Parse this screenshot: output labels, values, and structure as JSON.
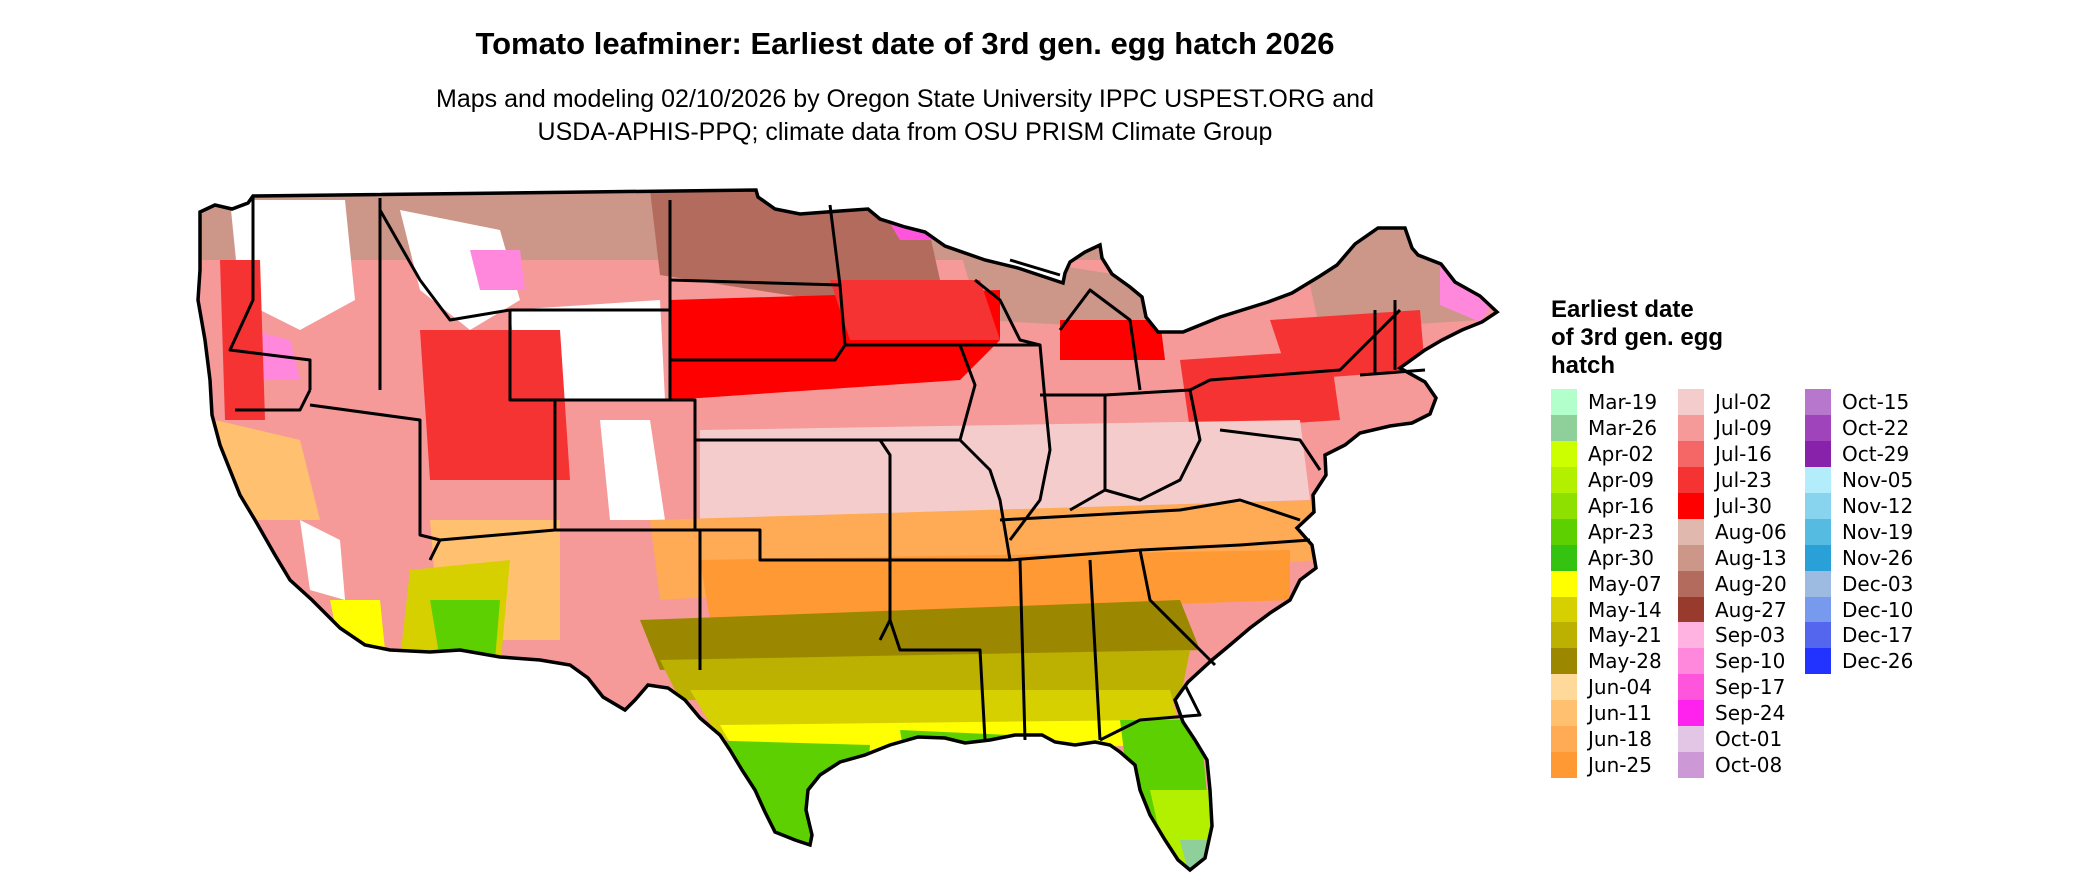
{
  "title": "Tomato leafminer: Earliest date of 3rd gen. egg hatch 2026",
  "subtitle_line1": "Maps and modeling 02/10/2026 by Oregon State University IPPC USPEST.ORG and",
  "subtitle_line2": "USDA-APHIS-PPQ; climate data from OSU PRISM Climate Group",
  "legend": {
    "title_lines": [
      "Earliest date",
      "of 3rd gen. egg",
      "hatch"
    ],
    "columns": [
      [
        {
          "label": "Mar-19",
          "color": "#b3ffcc"
        },
        {
          "label": "Mar-26",
          "color": "#8fcf99"
        },
        {
          "label": "Apr-02",
          "color": "#ccff00"
        },
        {
          "label": "Apr-09",
          "color": "#b2f000"
        },
        {
          "label": "Apr-16",
          "color": "#8ee000"
        },
        {
          "label": "Apr-23",
          "color": "#5cd000"
        },
        {
          "label": "Apr-30",
          "color": "#33c310"
        },
        {
          "label": "May-07",
          "color": "#ffff00"
        },
        {
          "label": "May-14",
          "color": "#d6d000"
        },
        {
          "label": "May-21",
          "color": "#bcb000"
        },
        {
          "label": "May-28",
          "color": "#9b8800"
        },
        {
          "label": "Jun-04",
          "color": "#ffd99a"
        },
        {
          "label": "Jun-11",
          "color": "#ffc070"
        },
        {
          "label": "Jun-18",
          "color": "#ffaa55"
        },
        {
          "label": "Jun-25",
          "color": "#ff9933"
        }
      ],
      [
        {
          "label": "Jul-02",
          "color": "#f5cccc"
        },
        {
          "label": "Jul-09",
          "color": "#f59999"
        },
        {
          "label": "Jul-16",
          "color": "#f56666"
        },
        {
          "label": "Jul-23",
          "color": "#f53333"
        },
        {
          "label": "Jul-30",
          "color": "#ff0000"
        },
        {
          "label": "Aug-06",
          "color": "#e0b8ad"
        },
        {
          "label": "Aug-13",
          "color": "#cc9688"
        },
        {
          "label": "Aug-20",
          "color": "#b36b5e"
        },
        {
          "label": "Aug-27",
          "color": "#993b2c"
        },
        {
          "label": "Sep-03",
          "color": "#ffb3e0"
        },
        {
          "label": "Sep-10",
          "color": "#ff88dd"
        },
        {
          "label": "Sep-17",
          "color": "#ff55dd"
        },
        {
          "label": "Sep-24",
          "color": "#ff22ee"
        },
        {
          "label": "Oct-01",
          "color": "#e3c5e6"
        },
        {
          "label": "Oct-08",
          "color": "#cc99d6"
        }
      ],
      [
        {
          "label": "Oct-15",
          "color": "#b777cc"
        },
        {
          "label": "Oct-22",
          "color": "#a044bb"
        },
        {
          "label": "Oct-29",
          "color": "#8822aa"
        },
        {
          "label": "Nov-05",
          "color": "#b3ecfa"
        },
        {
          "label": "Nov-12",
          "color": "#88d3ee"
        },
        {
          "label": "Nov-19",
          "color": "#55bbe0"
        },
        {
          "label": "Nov-26",
          "color": "#2aa0d8"
        },
        {
          "label": "Dec-03",
          "color": "#9dbbe0"
        },
        {
          "label": "Dec-10",
          "color": "#7799ee"
        },
        {
          "label": "Dec-17",
          "color": "#5566ee"
        },
        {
          "label": "Dec-26",
          "color": "#2233ff"
        }
      ]
    ]
  }
}
